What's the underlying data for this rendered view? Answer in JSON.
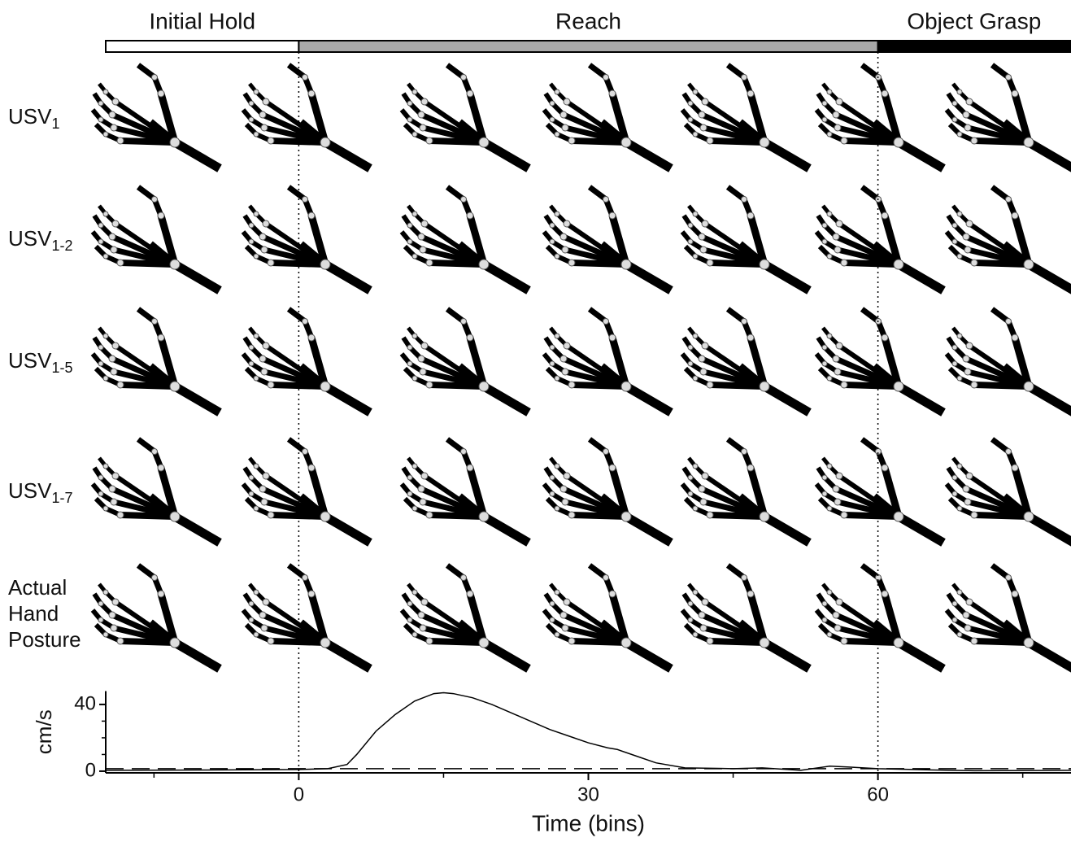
{
  "phases": [
    {
      "label": "Initial Hold",
      "start": -20,
      "end": 0,
      "fill": "#ffffff"
    },
    {
      "label": "Reach",
      "start": 0,
      "end": 60,
      "fill": "#a8a8a8"
    },
    {
      "label": "Object Grasp",
      "start": 60,
      "end": 80,
      "fill": "#000000"
    }
  ],
  "rows": [
    {
      "label": "USV",
      "sub": "1"
    },
    {
      "label": "USV",
      "sub": "1-2"
    },
    {
      "label": "USV",
      "sub": "1-5"
    },
    {
      "label": "USV",
      "sub": "1-7"
    },
    {
      "label": "Actual\nHand\nPosture"
    }
  ],
  "chart_data": {
    "type": "line",
    "xlabel": "Time (bins)",
    "ylabel": "cm/s",
    "x": [
      -20,
      -10,
      0,
      3,
      5,
      6,
      8,
      10,
      12,
      14,
      15,
      16,
      18,
      20,
      22,
      24,
      26,
      28,
      30,
      32,
      33,
      35,
      37,
      40,
      45,
      48,
      52,
      55,
      57,
      60,
      65,
      70,
      80
    ],
    "series": [
      {
        "color": "#000000",
        "dash": false,
        "values": [
          0.5,
          0.7,
          1,
          1.5,
          4,
          10,
          24,
          34,
          42,
          46.5,
          47,
          46.5,
          44,
          40,
          35,
          30,
          25,
          21,
          17,
          14,
          13,
          9,
          5,
          2,
          1.5,
          2,
          0.5,
          3,
          2.5,
          1.5,
          0.8,
          0.3,
          0.5
        ]
      },
      {
        "color": "#000000",
        "dash": true,
        "values": [
          1.5,
          1.5,
          1.5,
          1.5,
          1.5,
          1.5,
          1.5,
          1.5,
          1.5,
          1.5,
          1.5,
          1.5,
          1.5,
          1.5,
          1.5,
          1.5,
          1.5,
          1.5,
          1.5,
          1.5,
          1.5,
          1.5,
          1.5,
          1.5,
          1.5,
          1.5,
          1.5,
          1.5,
          1.5,
          1.5,
          1.5,
          1.5,
          1.5
        ]
      }
    ],
    "xlim": [
      -20,
      80
    ],
    "ylim": [
      -1,
      48
    ],
    "xticks": [
      0,
      30,
      60
    ],
    "xminorticks": [
      -15,
      15,
      45,
      75
    ],
    "yticks": [
      0,
      40
    ],
    "yminorticks": [
      10,
      20,
      30
    ],
    "event_lines": [
      0,
      60
    ]
  }
}
